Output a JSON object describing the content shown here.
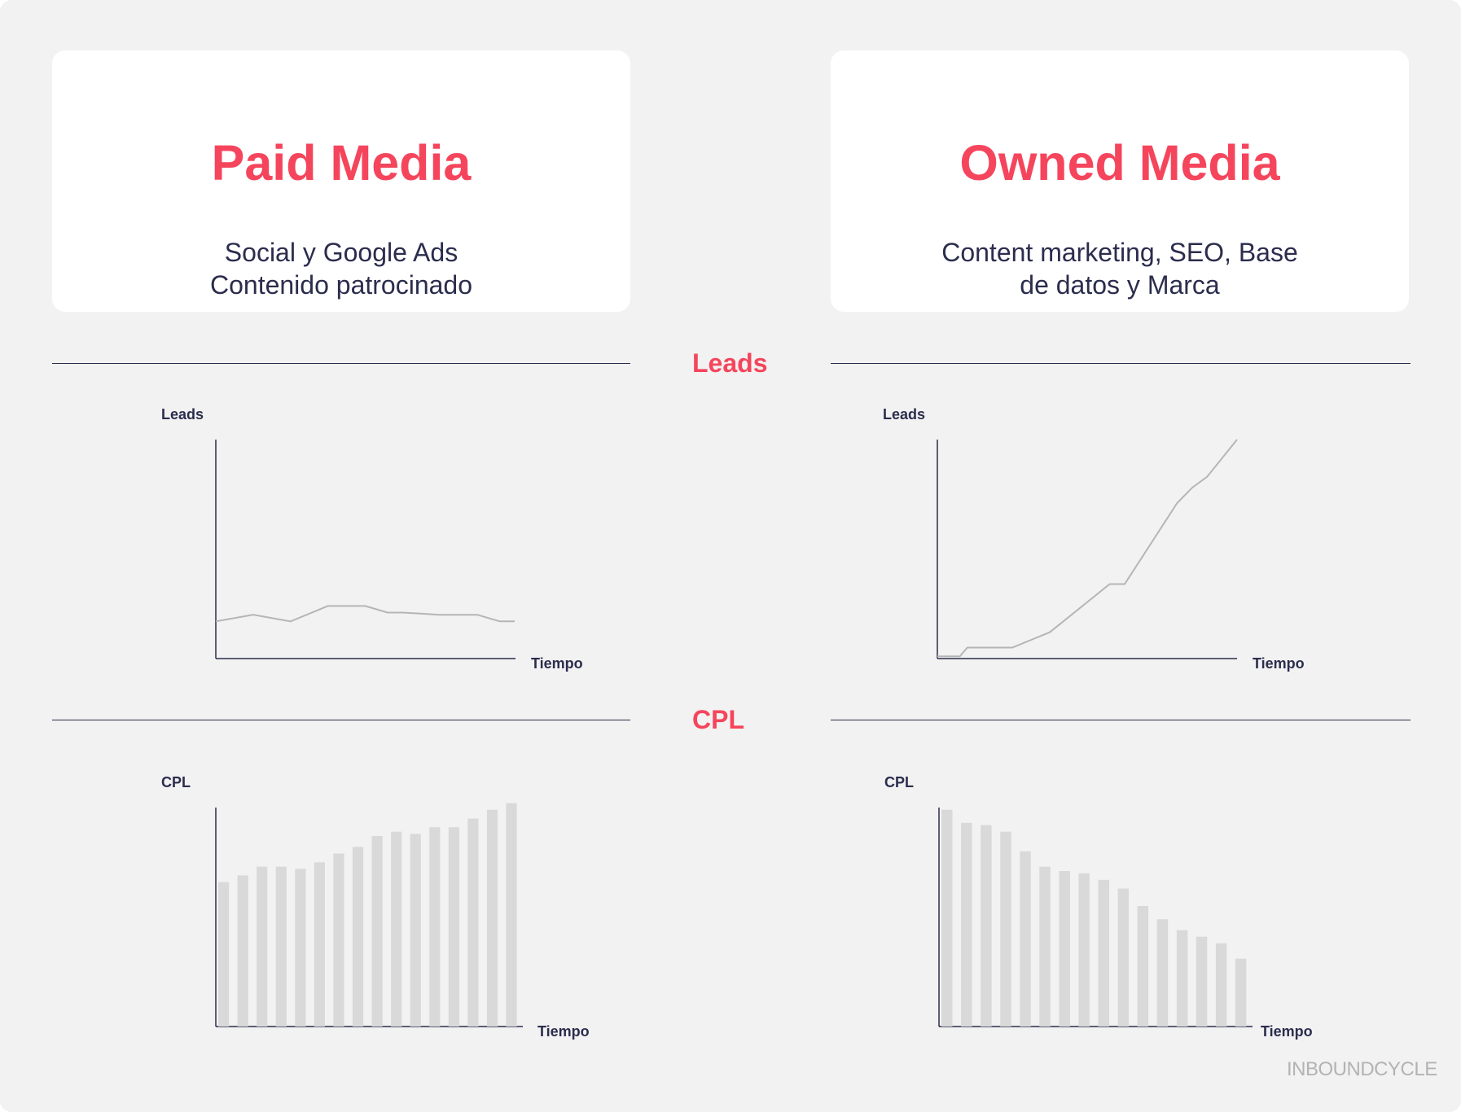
{
  "cards": [
    {
      "title": "Paid Media",
      "lines": [
        "Social y Google Ads",
        "Contenido patrocinado"
      ]
    },
    {
      "title": "Owned Media",
      "lines": [
        "Content marketing, SEO, Base",
        "de datos y Marca"
      ]
    }
  ],
  "sections": {
    "leads": "Leads",
    "cpl": "CPL"
  },
  "logo": "INBOUNDCYCLE",
  "colors": {
    "accent": "#f5455c",
    "text": "#2b2d4d",
    "line": "#b5b5b5",
    "bar": "#d9d9d9",
    "background": "#f2f2f2"
  },
  "chart_data": [
    {
      "type": "line",
      "id": "paid-leads",
      "xlabel": "Tiempo",
      "ylabel": "Leads",
      "ylim": [
        0,
        100
      ],
      "x": [
        0,
        25,
        50,
        75,
        100,
        115,
        125,
        150,
        175,
        190,
        200
      ],
      "series": [
        {
          "values": [
            17,
            20,
            17,
            24,
            24,
            21,
            21,
            20,
            20,
            17,
            17
          ]
        }
      ]
    },
    {
      "type": "line",
      "id": "owned-leads",
      "xlabel": "Tiempo",
      "ylabel": "Leads",
      "ylim": [
        0,
        100
      ],
      "x": [
        0,
        15,
        20,
        50,
        75,
        115,
        125,
        160,
        170,
        180,
        200
      ],
      "series": [
        {
          "values": [
            1,
            1,
            5,
            5,
            12,
            34,
            34,
            71,
            78,
            83,
            100
          ]
        }
      ]
    },
    {
      "type": "bar",
      "id": "paid-cpl",
      "xlabel": "Tiempo",
      "ylabel": "CPL",
      "ylim": [
        0,
        100
      ],
      "values": [
        66,
        69,
        73,
        73,
        72,
        75,
        79,
        82,
        87,
        89,
        88,
        91,
        91,
        95,
        99,
        102
      ]
    },
    {
      "type": "bar",
      "id": "owned-cpl",
      "xlabel": "Tiempo",
      "ylabel": "CPL",
      "ylim": [
        0,
        100
      ],
      "values": [
        99,
        93,
        92,
        89,
        80,
        73,
        71,
        70,
        67,
        63,
        55,
        49,
        44,
        41,
        38,
        31
      ]
    }
  ]
}
